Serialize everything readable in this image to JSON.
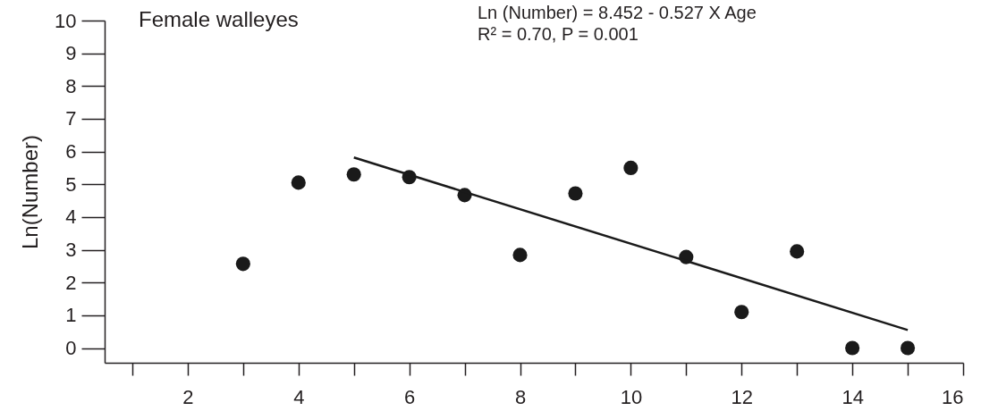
{
  "chart_data": {
    "type": "scatter",
    "title": "Female walleyes",
    "ylabel": "Ln(Number)",
    "annotations": [
      "Ln (Number) = 8.452 - 0.527 X Age",
      "R² = 0.70, P = 0.001"
    ],
    "series": [
      {
        "color": "#1a1a1a",
        "marker": "circle",
        "x": [
          3,
          4,
          5,
          6,
          7,
          8,
          9,
          10,
          11,
          12,
          13,
          14,
          15
        ],
        "values": [
          2.57,
          5.05,
          5.3,
          5.22,
          4.67,
          2.84,
          4.72,
          5.5,
          2.78,
          1.1,
          2.95,
          0,
          0
        ]
      },
      {
        "type": "line",
        "color": "#1a1a1a",
        "line_style": "solid",
        "x": [
          5,
          15
        ],
        "values": [
          5.82,
          0.55
        ]
      }
    ],
    "xlim": [
      0.5,
      16
    ],
    "xticks": [
      {
        "value": 1,
        "label": null
      },
      2,
      {
        "value": 3,
        "label": null
      },
      4,
      {
        "value": 5,
        "label": null
      },
      6,
      {
        "value": 7,
        "label": null
      },
      8,
      {
        "value": 9,
        "label": null
      },
      10,
      {
        "value": 11,
        "label": null
      },
      12,
      {
        "value": 13,
        "label": null
      },
      14,
      {
        "value": 15,
        "label": null
      },
      16
    ],
    "ylim": [
      -0.45,
      10
    ],
    "yticks": [
      0,
      1,
      2,
      3,
      4,
      5,
      6,
      7,
      8,
      9,
      10
    ],
    "grid": false
  }
}
